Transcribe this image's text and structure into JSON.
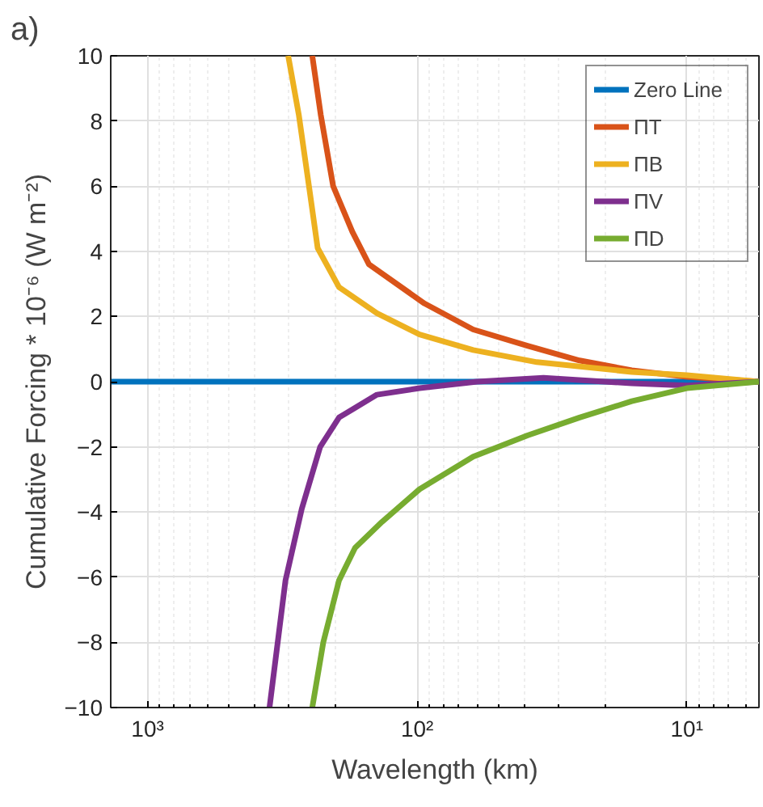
{
  "chart_data": {
    "type": "line",
    "title": "a)",
    "xlabel": "Wavelength (km)",
    "ylabel": "Cumulative Forcing * 10⁻⁶ (W m⁻²)",
    "log": "x",
    "xlim": [
      1370,
      5.4
    ],
    "xticks": [
      {
        "value": 1000,
        "label": "10³"
      },
      {
        "value": 100,
        "label": "10²"
      },
      {
        "value": 10,
        "label": "10¹"
      }
    ],
    "ylim": [
      -10,
      10
    ],
    "yticks": [
      -10,
      -8,
      -6,
      -4,
      -2,
      0,
      2,
      4,
      6,
      8,
      10
    ],
    "grid": true,
    "legend": "top right",
    "line_style": "solid",
    "marker": "none",
    "series": [
      {
        "name": "Zero Line",
        "color": "#0072bd",
        "x": [
          1370,
          5.4
        ],
        "values": [
          0,
          0
        ]
      },
      {
        "name": "ΠT",
        "color": "#d95319",
        "x": [
          245,
          228,
          205,
          174,
          151,
          94,
          62,
          39,
          25,
          16,
          10,
          5.4
        ],
        "values": [
          10,
          8.2,
          6,
          4.6,
          3.6,
          2.4,
          1.6,
          1.1,
          0.65,
          0.35,
          0.15,
          0
        ]
      },
      {
        "name": "ΠB",
        "color": "#edb120",
        "x": [
          301,
          275,
          252,
          234,
          195,
          141,
          98,
          62,
          36,
          16,
          10,
          5.4
        ],
        "values": [
          10,
          8.2,
          6,
          4.1,
          2.9,
          2.1,
          1.45,
          0.97,
          0.6,
          0.3,
          0.2,
          0
        ]
      },
      {
        "name": "ΠV",
        "color": "#7e2f8e",
        "x": [
          353,
          308,
          268,
          229,
          195,
          141,
          98,
          60,
          34,
          16,
          10,
          5.4
        ],
        "values": [
          -10,
          -6.1,
          -3.9,
          -2,
          -1.1,
          -0.4,
          -0.2,
          0,
          0.12,
          -0.05,
          -0.12,
          0
        ]
      },
      {
        "name": "ΠD",
        "color": "#77ac30",
        "x": [
          245,
          223,
          195,
          170,
          135,
          98,
          62,
          39,
          25,
          16,
          10,
          5.4
        ],
        "values": [
          -10,
          -8,
          -6.1,
          -5.1,
          -4.3,
          -3.3,
          -2.3,
          -1.65,
          -1.1,
          -0.6,
          -0.2,
          0
        ]
      }
    ]
  }
}
